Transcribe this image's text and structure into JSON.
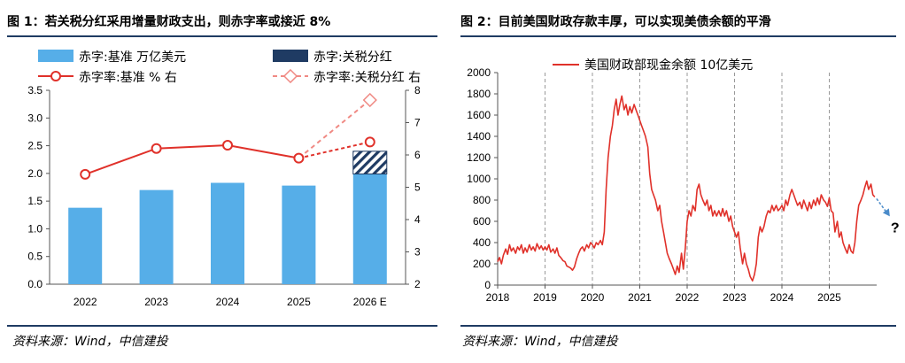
{
  "figures": [
    {
      "title": "图 1：若关税分红采用增量财政支出，则赤字率或接近 8%",
      "source": "资料来源：Wind，中信建投"
    },
    {
      "title": "图 2：目前美国财政存款丰厚，可以实现美债余额的平滑",
      "source": "资料来源：Wind，中信建投"
    }
  ],
  "chart_data": [
    {
      "type": "bar",
      "categories": [
        "2022",
        "2023",
        "2024",
        "2025",
        "2026 E"
      ],
      "series": [
        {
          "name": "赤字:基准 万亿美元",
          "kind": "bar",
          "axis": "left",
          "values": [
            1.38,
            1.7,
            1.83,
            1.78,
            1.99
          ],
          "color": "#56aee8"
        },
        {
          "name": "赤字:关税分红",
          "kind": "bar-stacked",
          "axis": "left",
          "values": [
            null,
            null,
            null,
            null,
            0.41
          ],
          "color": "#1f3b63",
          "pattern": "hatched"
        },
        {
          "name": "赤字率:基准 % 右",
          "kind": "line",
          "axis": "right",
          "values": [
            5.4,
            6.2,
            6.3,
            5.9,
            6.4
          ],
          "color": "#e0312a"
        },
        {
          "name": "赤字率:关税分红 右",
          "kind": "line-dashed",
          "axis": "right",
          "values": [
            null,
            null,
            null,
            5.9,
            7.7
          ],
          "color": "#f08a84"
        }
      ],
      "left_axis": {
        "min": 0,
        "max": 3.5,
        "ticks": [
          "0.0",
          "0.5",
          "1.0",
          "1.5",
          "2.0",
          "2.5",
          "3.0",
          "3.5"
        ]
      },
      "right_axis": {
        "min": 2,
        "max": 8,
        "ticks": [
          "2",
          "3",
          "4",
          "5",
          "6",
          "7",
          "8"
        ]
      },
      "legend_placement": "top"
    },
    {
      "type": "line",
      "series": [
        {
          "name": "美国财政部现金余额 10亿美元",
          "color": "#e0312a",
          "points": [
            [
              2018.0,
              220
            ],
            [
              2018.04,
              260
            ],
            [
              2018.08,
              200
            ],
            [
              2018.12,
              280
            ],
            [
              2018.17,
              340
            ],
            [
              2018.21,
              290
            ],
            [
              2018.25,
              380
            ],
            [
              2018.29,
              320
            ],
            [
              2018.33,
              350
            ],
            [
              2018.38,
              300
            ],
            [
              2018.42,
              360
            ],
            [
              2018.46,
              330
            ],
            [
              2018.5,
              380
            ],
            [
              2018.54,
              300
            ],
            [
              2018.58,
              350
            ],
            [
              2018.62,
              310
            ],
            [
              2018.67,
              380
            ],
            [
              2018.71,
              330
            ],
            [
              2018.75,
              360
            ],
            [
              2018.79,
              320
            ],
            [
              2018.83,
              390
            ],
            [
              2018.88,
              340
            ],
            [
              2018.92,
              370
            ],
            [
              2018.96,
              330
            ],
            [
              2019.0,
              360
            ],
            [
              2019.04,
              330
            ],
            [
              2019.08,
              380
            ],
            [
              2019.12,
              310
            ],
            [
              2019.17,
              340
            ],
            [
              2019.21,
              300
            ],
            [
              2019.25,
              350
            ],
            [
              2019.29,
              280
            ],
            [
              2019.33,
              260
            ],
            [
              2019.38,
              230
            ],
            [
              2019.42,
              220
            ],
            [
              2019.46,
              180
            ],
            [
              2019.5,
              170
            ],
            [
              2019.54,
              160
            ],
            [
              2019.58,
              140
            ],
            [
              2019.62,
              170
            ],
            [
              2019.67,
              250
            ],
            [
              2019.71,
              300
            ],
            [
              2019.75,
              340
            ],
            [
              2019.79,
              360
            ],
            [
              2019.83,
              320
            ],
            [
              2019.88,
              380
            ],
            [
              2019.92,
              350
            ],
            [
              2019.96,
              400
            ],
            [
              2020.0,
              380
            ],
            [
              2020.04,
              350
            ],
            [
              2020.08,
              400
            ],
            [
              2020.12,
              380
            ],
            [
              2020.17,
              420
            ],
            [
              2020.21,
              380
            ],
            [
              2020.25,
              500
            ],
            [
              2020.29,
              900
            ],
            [
              2020.33,
              1200
            ],
            [
              2020.38,
              1400
            ],
            [
              2020.42,
              1500
            ],
            [
              2020.46,
              1650
            ],
            [
              2020.5,
              1750
            ],
            [
              2020.54,
              1600
            ],
            [
              2020.58,
              1700
            ],
            [
              2020.62,
              1780
            ],
            [
              2020.67,
              1650
            ],
            [
              2020.71,
              1700
            ],
            [
              2020.75,
              1600
            ],
            [
              2020.79,
              1680
            ],
            [
              2020.83,
              1620
            ],
            [
              2020.88,
              1700
            ],
            [
              2020.92,
              1650
            ],
            [
              2020.96,
              1600
            ],
            [
              2021.0,
              1550
            ],
            [
              2021.04,
              1500
            ],
            [
              2021.08,
              1450
            ],
            [
              2021.12,
              1400
            ],
            [
              2021.17,
              1300
            ],
            [
              2021.21,
              1050
            ],
            [
              2021.25,
              900
            ],
            [
              2021.29,
              850
            ],
            [
              2021.33,
              800
            ],
            [
              2021.38,
              700
            ],
            [
              2021.42,
              750
            ],
            [
              2021.46,
              600
            ],
            [
              2021.5,
              500
            ],
            [
              2021.54,
              400
            ],
            [
              2021.58,
              300
            ],
            [
              2021.62,
              250
            ],
            [
              2021.67,
              200
            ],
            [
              2021.71,
              150
            ],
            [
              2021.75,
              100
            ],
            [
              2021.79,
              180
            ],
            [
              2021.83,
              120
            ],
            [
              2021.88,
              300
            ],
            [
              2021.92,
              150
            ],
            [
              2021.96,
              350
            ],
            [
              2022.0,
              600
            ],
            [
              2022.04,
              700
            ],
            [
              2022.08,
              650
            ],
            [
              2022.12,
              750
            ],
            [
              2022.17,
              700
            ],
            [
              2022.21,
              900
            ],
            [
              2022.25,
              950
            ],
            [
              2022.29,
              850
            ],
            [
              2022.33,
              800
            ],
            [
              2022.38,
              750
            ],
            [
              2022.42,
              800
            ],
            [
              2022.46,
              700
            ],
            [
              2022.5,
              750
            ],
            [
              2022.54,
              650
            ],
            [
              2022.58,
              700
            ],
            [
              2022.62,
              650
            ],
            [
              2022.67,
              700
            ],
            [
              2022.71,
              650
            ],
            [
              2022.75,
              720
            ],
            [
              2022.79,
              650
            ],
            [
              2022.83,
              700
            ],
            [
              2022.88,
              600
            ],
            [
              2022.92,
              650
            ],
            [
              2022.96,
              550
            ],
            [
              2023.0,
              500
            ],
            [
              2023.04,
              450
            ],
            [
              2023.08,
              500
            ],
            [
              2023.12,
              350
            ],
            [
              2023.17,
              200
            ],
            [
              2023.21,
              300
            ],
            [
              2023.25,
              200
            ],
            [
              2023.29,
              150
            ],
            [
              2023.33,
              80
            ],
            [
              2023.38,
              40
            ],
            [
              2023.42,
              100
            ],
            [
              2023.46,
              200
            ],
            [
              2023.5,
              450
            ],
            [
              2023.54,
              550
            ],
            [
              2023.58,
              500
            ],
            [
              2023.62,
              550
            ],
            [
              2023.67,
              650
            ],
            [
              2023.71,
              700
            ],
            [
              2023.75,
              680
            ],
            [
              2023.79,
              750
            ],
            [
              2023.83,
              700
            ],
            [
              2023.88,
              750
            ],
            [
              2023.92,
              700
            ],
            [
              2023.96,
              720
            ],
            [
              2024.0,
              750
            ],
            [
              2024.04,
              700
            ],
            [
              2024.08,
              800
            ],
            [
              2024.12,
              750
            ],
            [
              2024.17,
              850
            ],
            [
              2024.21,
              900
            ],
            [
              2024.25,
              850
            ],
            [
              2024.29,
              800
            ],
            [
              2024.33,
              750
            ],
            [
              2024.38,
              780
            ],
            [
              2024.42,
              720
            ],
            [
              2024.46,
              800
            ],
            [
              2024.5,
              750
            ],
            [
              2024.54,
              700
            ],
            [
              2024.58,
              780
            ],
            [
              2024.62,
              720
            ],
            [
              2024.67,
              800
            ],
            [
              2024.71,
              750
            ],
            [
              2024.75,
              820
            ],
            [
              2024.79,
              760
            ],
            [
              2024.83,
              850
            ],
            [
              2024.88,
              800
            ],
            [
              2024.92,
              780
            ],
            [
              2024.96,
              740
            ],
            [
              2025.0,
              820
            ],
            [
              2025.04,
              700
            ],
            [
              2025.08,
              680
            ],
            [
              2025.12,
              500
            ],
            [
              2025.17,
              600
            ],
            [
              2025.21,
              450
            ],
            [
              2025.25,
              500
            ],
            [
              2025.29,
              400
            ],
            [
              2025.33,
              350
            ],
            [
              2025.38,
              300
            ],
            [
              2025.42,
              380
            ],
            [
              2025.46,
              320
            ],
            [
              2025.5,
              300
            ],
            [
              2025.54,
              400
            ],
            [
              2025.58,
              600
            ],
            [
              2025.62,
              750
            ],
            [
              2025.67,
              800
            ],
            [
              2025.71,
              850
            ],
            [
              2025.75,
              920
            ],
            [
              2025.79,
              980
            ],
            [
              2025.83,
              900
            ],
            [
              2025.88,
              950
            ],
            [
              2025.92,
              850
            ],
            [
              2025.96,
              830
            ]
          ]
        }
      ],
      "projection_label": "?",
      "x_axis": {
        "min": 2018,
        "max": 2026,
        "ticks": [
          "2018",
          "2019",
          "2020",
          "2021",
          "2022",
          "2023",
          "2024",
          "2025"
        ]
      },
      "y_axis": {
        "min": 0,
        "max": 2000,
        "ticks": [
          "0",
          "200",
          "400",
          "600",
          "800",
          "1000",
          "1200",
          "1400",
          "1600",
          "1800",
          "2000"
        ]
      },
      "grid": "vertical dashed at year boundaries",
      "legend_placement": "top"
    }
  ]
}
